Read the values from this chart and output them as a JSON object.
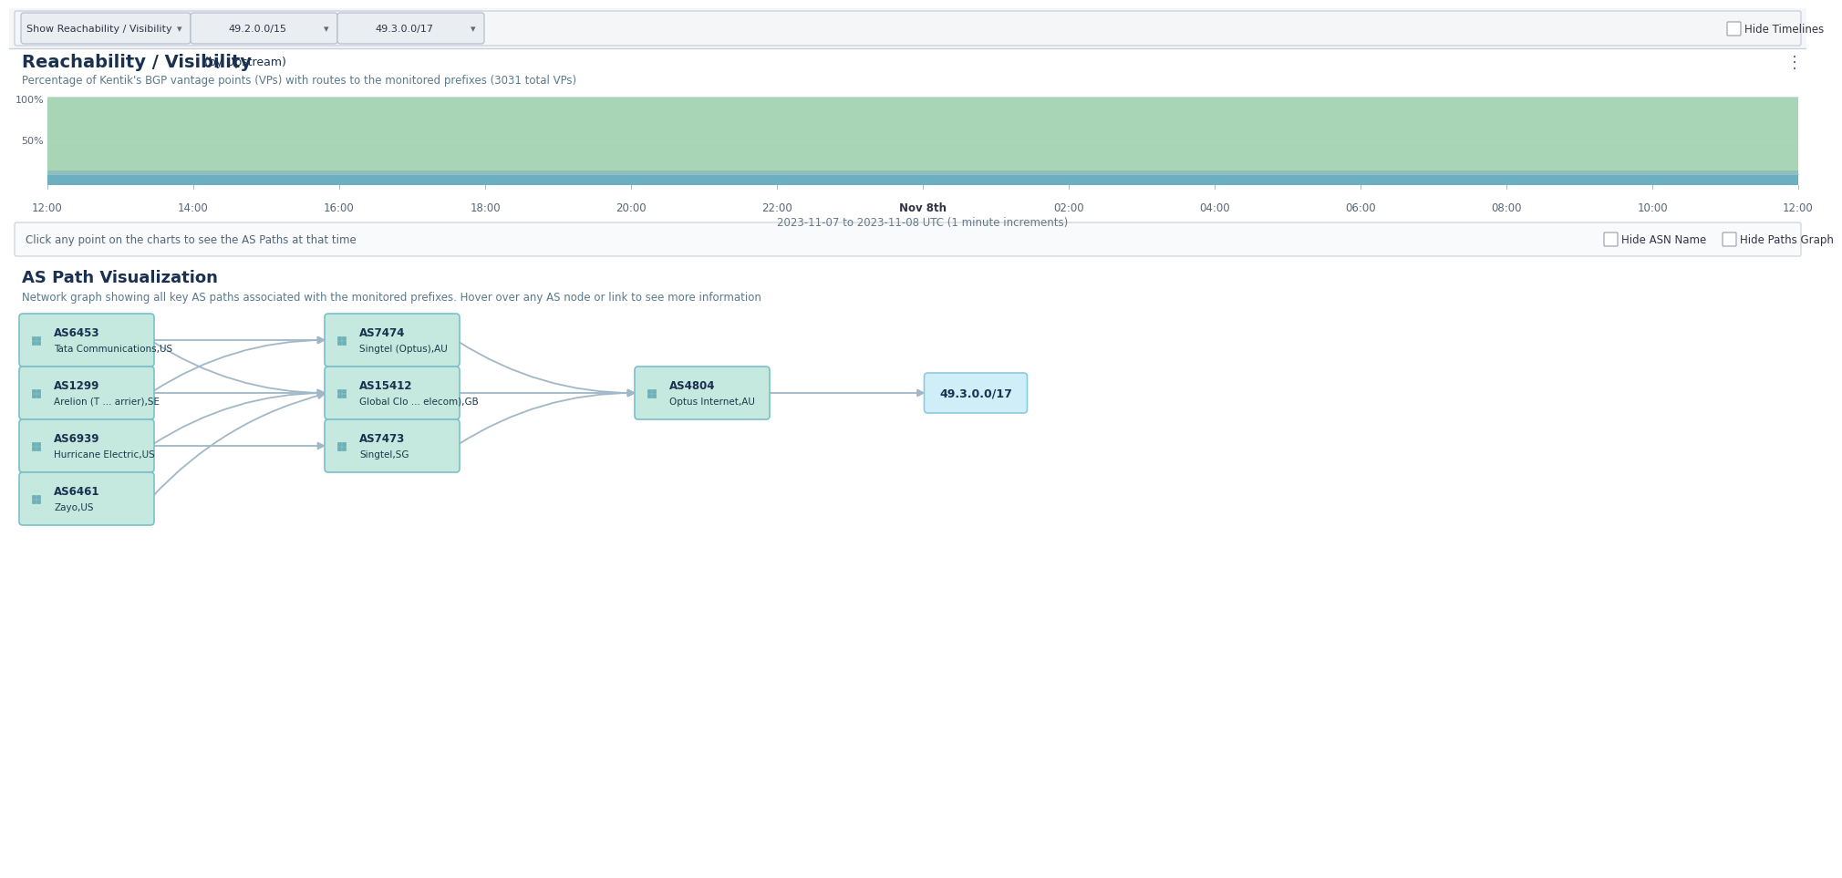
{
  "title": "Reachability / Visibility",
  "title_suffix": " (by Upstream)",
  "subtitle": "Percentage of Kentik's BGP vantage points (VPs) with routes to the monitored prefixes (3031 total VPs)",
  "bg_color": "#ffffff",
  "toolbar_bg": "#f5f6f8",
  "hide_timelines_label": "Hide Timelines",
  "chart_green": "#a8d5b5",
  "chart_teal": "#6bafc0",
  "chart_blue_band": "#7ba8c4",
  "y_labels": [
    "100%",
    "50%"
  ],
  "x_labels": [
    "12:00",
    "14:00",
    "16:00",
    "18:00",
    "20:00",
    "22:00",
    "Nov 8th",
    "02:00",
    "04:00",
    "06:00",
    "08:00",
    "10:00",
    "12:00"
  ],
  "x_label_bold_idx": 6,
  "date_range_label": "2023-11-07 to 2023-11-08 UTC (1 minute increments)",
  "click_hint": "Click any point on the charts to see the AS Paths at that time",
  "hide_asn_label": "Hide ASN Name",
  "hide_paths_label": "Hide Paths Graph",
  "section2_title": "AS Path Visualization",
  "section2_subtitle": "Network graph showing all key AS paths associated with the monitored prefixes. Hover over any AS node or link to see more information",
  "nodes": [
    {
      "id": "AS6453",
      "label1": "AS6453",
      "label2": "Tata Communications,US",
      "col": 0,
      "row": 0
    },
    {
      "id": "AS1299",
      "label1": "AS1299",
      "label2": "Arelion (T ... arrier),SE",
      "col": 0,
      "row": 1
    },
    {
      "id": "AS6939",
      "label1": "AS6939",
      "label2": "Hurricane Electric,US",
      "col": 0,
      "row": 2
    },
    {
      "id": "AS6461",
      "label1": "AS6461",
      "label2": "Zayo,US",
      "col": 0,
      "row": 3
    },
    {
      "id": "AS7474",
      "label1": "AS7474",
      "label2": "Singtel (Optus),AU",
      "col": 1,
      "row": 0
    },
    {
      "id": "AS15412",
      "label1": "AS15412",
      "label2": "Global Clo ... elecom),GB",
      "col": 1,
      "row": 1
    },
    {
      "id": "AS7473",
      "label1": "AS7473",
      "label2": "Singtel,SG",
      "col": 1,
      "row": 2
    },
    {
      "id": "AS4804",
      "label1": "AS4804",
      "label2": "Optus Internet,AU",
      "col": 2,
      "row": 1
    },
    {
      "id": "49.3.0.0/17",
      "label1": "49.3.0.0/17",
      "label2": "",
      "col": 3,
      "row": 1
    }
  ],
  "edges": [
    [
      "AS6453",
      "AS7474"
    ],
    [
      "AS6453",
      "AS15412"
    ],
    [
      "AS1299",
      "AS7474"
    ],
    [
      "AS1299",
      "AS15412"
    ],
    [
      "AS6939",
      "AS15412"
    ],
    [
      "AS6939",
      "AS7473"
    ],
    [
      "AS6461",
      "AS15412"
    ],
    [
      "AS7474",
      "AS4804"
    ],
    [
      "AS15412",
      "AS4804"
    ],
    [
      "AS7473",
      "AS4804"
    ],
    [
      "AS4804",
      "49.3.0.0/17"
    ]
  ],
  "node_fill": "#c5e8df",
  "node_border": "#7bbfcc",
  "node_text": "#1a3a4a",
  "node_text_bold": "#1a3050",
  "prefix_fill": "#d0eef8",
  "prefix_border": "#8bcbdd",
  "edge_color": "#a0b8c8",
  "icon_color": "#5ba3b0",
  "divider_color": "#c8d0d8"
}
